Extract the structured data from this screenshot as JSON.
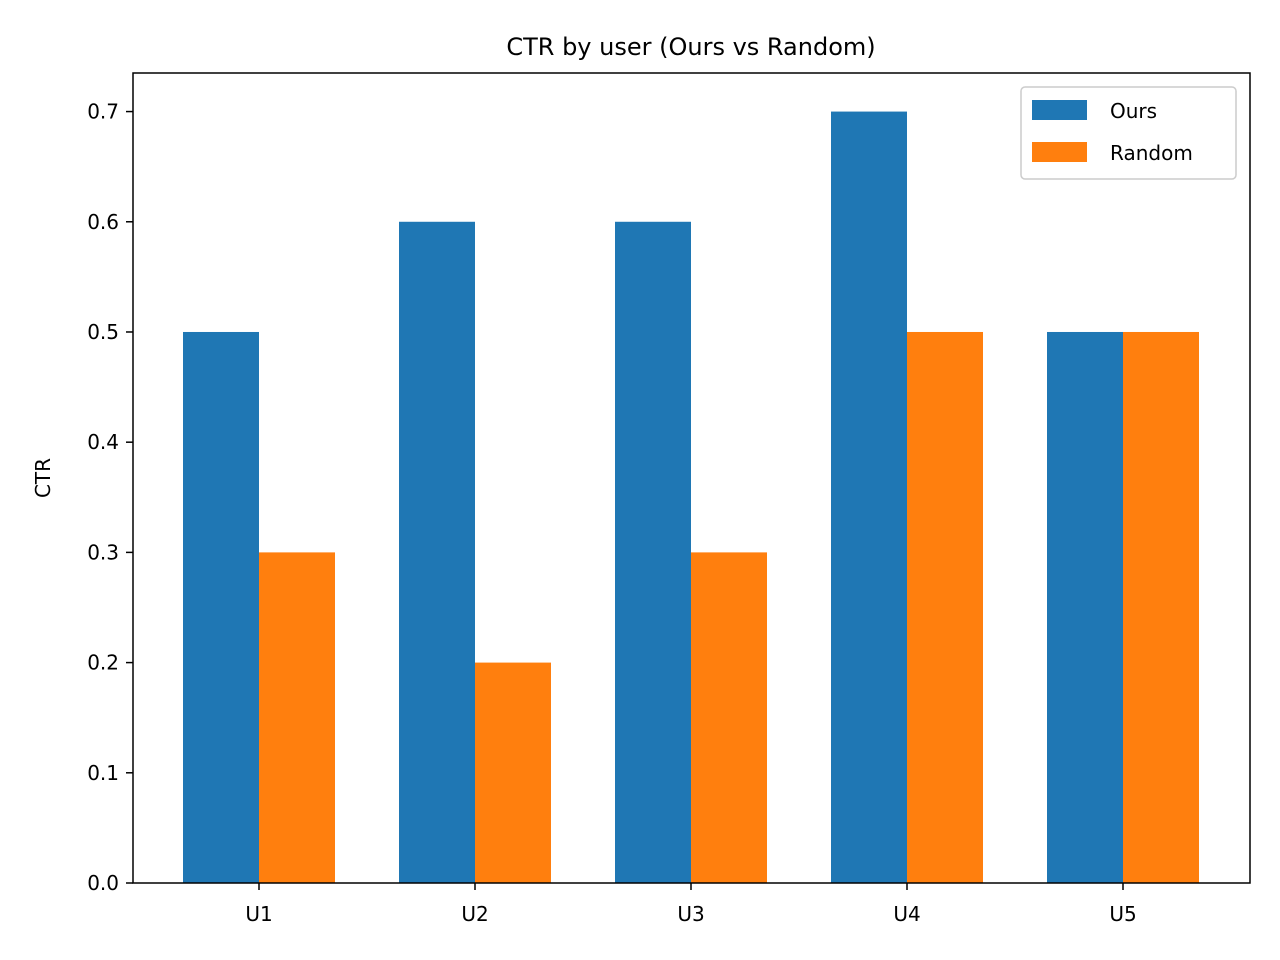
{
  "chart_data": {
    "type": "bar",
    "title": "CTR by user (Ours vs Random)",
    "xlabel": "",
    "ylabel": "CTR",
    "categories": [
      "U1",
      "U2",
      "U3",
      "U4",
      "U5"
    ],
    "series": [
      {
        "name": "Ours",
        "color": "#1f77b4",
        "values": [
          0.5,
          0.6,
          0.6,
          0.7,
          0.5
        ]
      },
      {
        "name": "Random",
        "color": "#ff7f0e",
        "values": [
          0.3,
          0.2,
          0.3,
          0.5,
          0.5
        ]
      }
    ],
    "ylim": [
      0,
      0.735
    ],
    "yticks": [
      0.0,
      0.1,
      0.2,
      0.3,
      0.4,
      0.5,
      0.6,
      0.7
    ],
    "ytick_labels": [
      "0.0",
      "0.1",
      "0.2",
      "0.3",
      "0.4",
      "0.5",
      "0.6",
      "0.7"
    ],
    "grid": false,
    "legend_position": "top-right"
  }
}
